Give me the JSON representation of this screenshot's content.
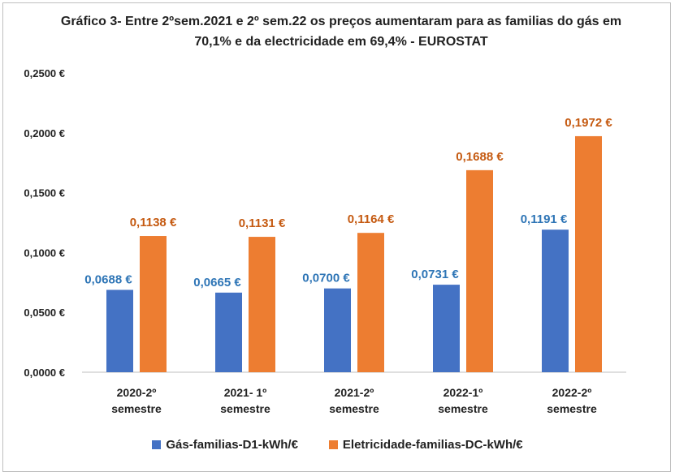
{
  "chart_data": {
    "type": "bar",
    "title": "Gráfico 3- Entre 2ºsem.2021 e 2º sem.22 os  preços aumentaram para as familias  do gás  em 70,1%  e da electricidade em 69,4% - EUROSTAT",
    "categories": [
      [
        "2020-2º",
        "semestre"
      ],
      [
        "2021- 1º",
        "semestre"
      ],
      [
        "2021-2º",
        "semestre"
      ],
      [
        "2022-1º",
        "semestre"
      ],
      [
        "2022-2º",
        "semestre"
      ]
    ],
    "series": [
      {
        "name": "Gás-familias-D1-kWh/€",
        "color": "#4472c4",
        "label_color": "#2e75b6",
        "values": [
          0.0688,
          0.0665,
          0.07,
          0.0731,
          0.1191
        ],
        "labels": [
          "0,0688 €",
          "0,0665 €",
          "0,0700 €",
          "0,0731 €",
          "0,1191 €"
        ]
      },
      {
        "name": "Eletricidade-familias-DC-kWh/€",
        "color": "#ed7d31",
        "label_color": "#c55a11",
        "values": [
          0.1138,
          0.1131,
          0.1164,
          0.1688,
          0.1972
        ],
        "labels": [
          "0,1138 €",
          "0,1131 €",
          "0,1164 €",
          "0,1688 €",
          "0,1972 €"
        ]
      }
    ],
    "ylim": [
      0,
      0.25
    ],
    "yticks": [
      0,
      0.05,
      0.1,
      0.15,
      0.2,
      0.25
    ],
    "ytick_labels": [
      "0,0000 €",
      "0,0500 €",
      "0,1000 €",
      "0,1500 €",
      "0,2000 €",
      "0,2500 €"
    ],
    "grid": false,
    "legend": "bottom"
  }
}
